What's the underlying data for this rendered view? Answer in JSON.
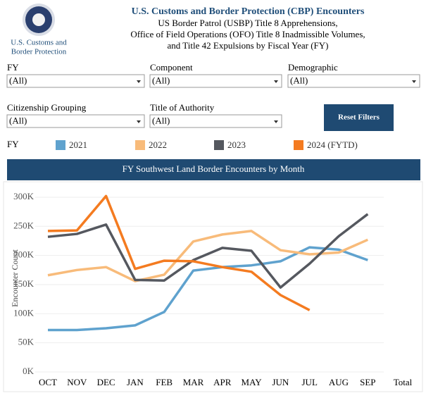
{
  "header": {
    "logo_text": [
      "U.S. Customs and",
      "Border Protection"
    ],
    "title": "U.S. Customs and Border Protection (CBP) Encounters",
    "subtitle_lines": [
      "US Border Patrol (USBP) Title 8 Apprehensions,",
      "Office of Field Operations (OFO) Title 8 Inadmissible Volumes,",
      "and Title 42 Expulsions by Fiscal Year (FY)"
    ]
  },
  "filters": [
    {
      "label": "FY",
      "value": "(All)"
    },
    {
      "label": "Component",
      "value": "(All)"
    },
    {
      "label": "Demographic",
      "value": "(All)"
    },
    {
      "label": "Citizenship Grouping",
      "value": "(All)"
    },
    {
      "label": "Title of Authority",
      "value": "(All)"
    }
  ],
  "reset_button": "Reset Filters",
  "chart_data": {
    "type": "line",
    "title": "FY Southwest Land Border Encounters by Month",
    "legend_title": "FY",
    "y_label": "Encounter Count",
    "categories": [
      "OCT",
      "NOV",
      "DEC",
      "JAN",
      "FEB",
      "MAR",
      "APR",
      "MAY",
      "JUN",
      "JUL",
      "AUG",
      "SEP",
      "Total"
    ],
    "series": [
      {
        "name": "2021",
        "color": "#5fa2ce",
        "values": [
          72000,
          72000,
          75000,
          80000,
          103000,
          174000,
          180000,
          183000,
          190000,
          214000,
          210000,
          192000,
          null
        ]
      },
      {
        "name": "2022",
        "color": "#f8bb7a",
        "values": [
          166000,
          175000,
          180000,
          156000,
          167000,
          224000,
          236000,
          242000,
          209000,
          202000,
          205000,
          227000,
          null
        ]
      },
      {
        "name": "2023",
        "color": "#55585f",
        "values": [
          232000,
          237000,
          253000,
          158000,
          157000,
          192000,
          213000,
          208000,
          145000,
          186000,
          233000,
          271000,
          null
        ]
      },
      {
        "name": "2024 (FYTD)",
        "color": "#f47b20",
        "values": [
          242000,
          243000,
          302000,
          177000,
          191000,
          190000,
          180000,
          172000,
          132000,
          106000,
          null,
          null,
          null
        ]
      }
    ],
    "ylim": [
      0,
      310000
    ],
    "yticks": [
      {
        "value": 0,
        "label": "0K"
      },
      {
        "value": 50000,
        "label": "50K"
      },
      {
        "value": 100000,
        "label": "100K"
      },
      {
        "value": 150000,
        "label": "150K"
      },
      {
        "value": 200000,
        "label": "200K"
      },
      {
        "value": 250000,
        "label": "250K"
      },
      {
        "value": 300000,
        "label": "300K"
      }
    ],
    "grid": true
  }
}
